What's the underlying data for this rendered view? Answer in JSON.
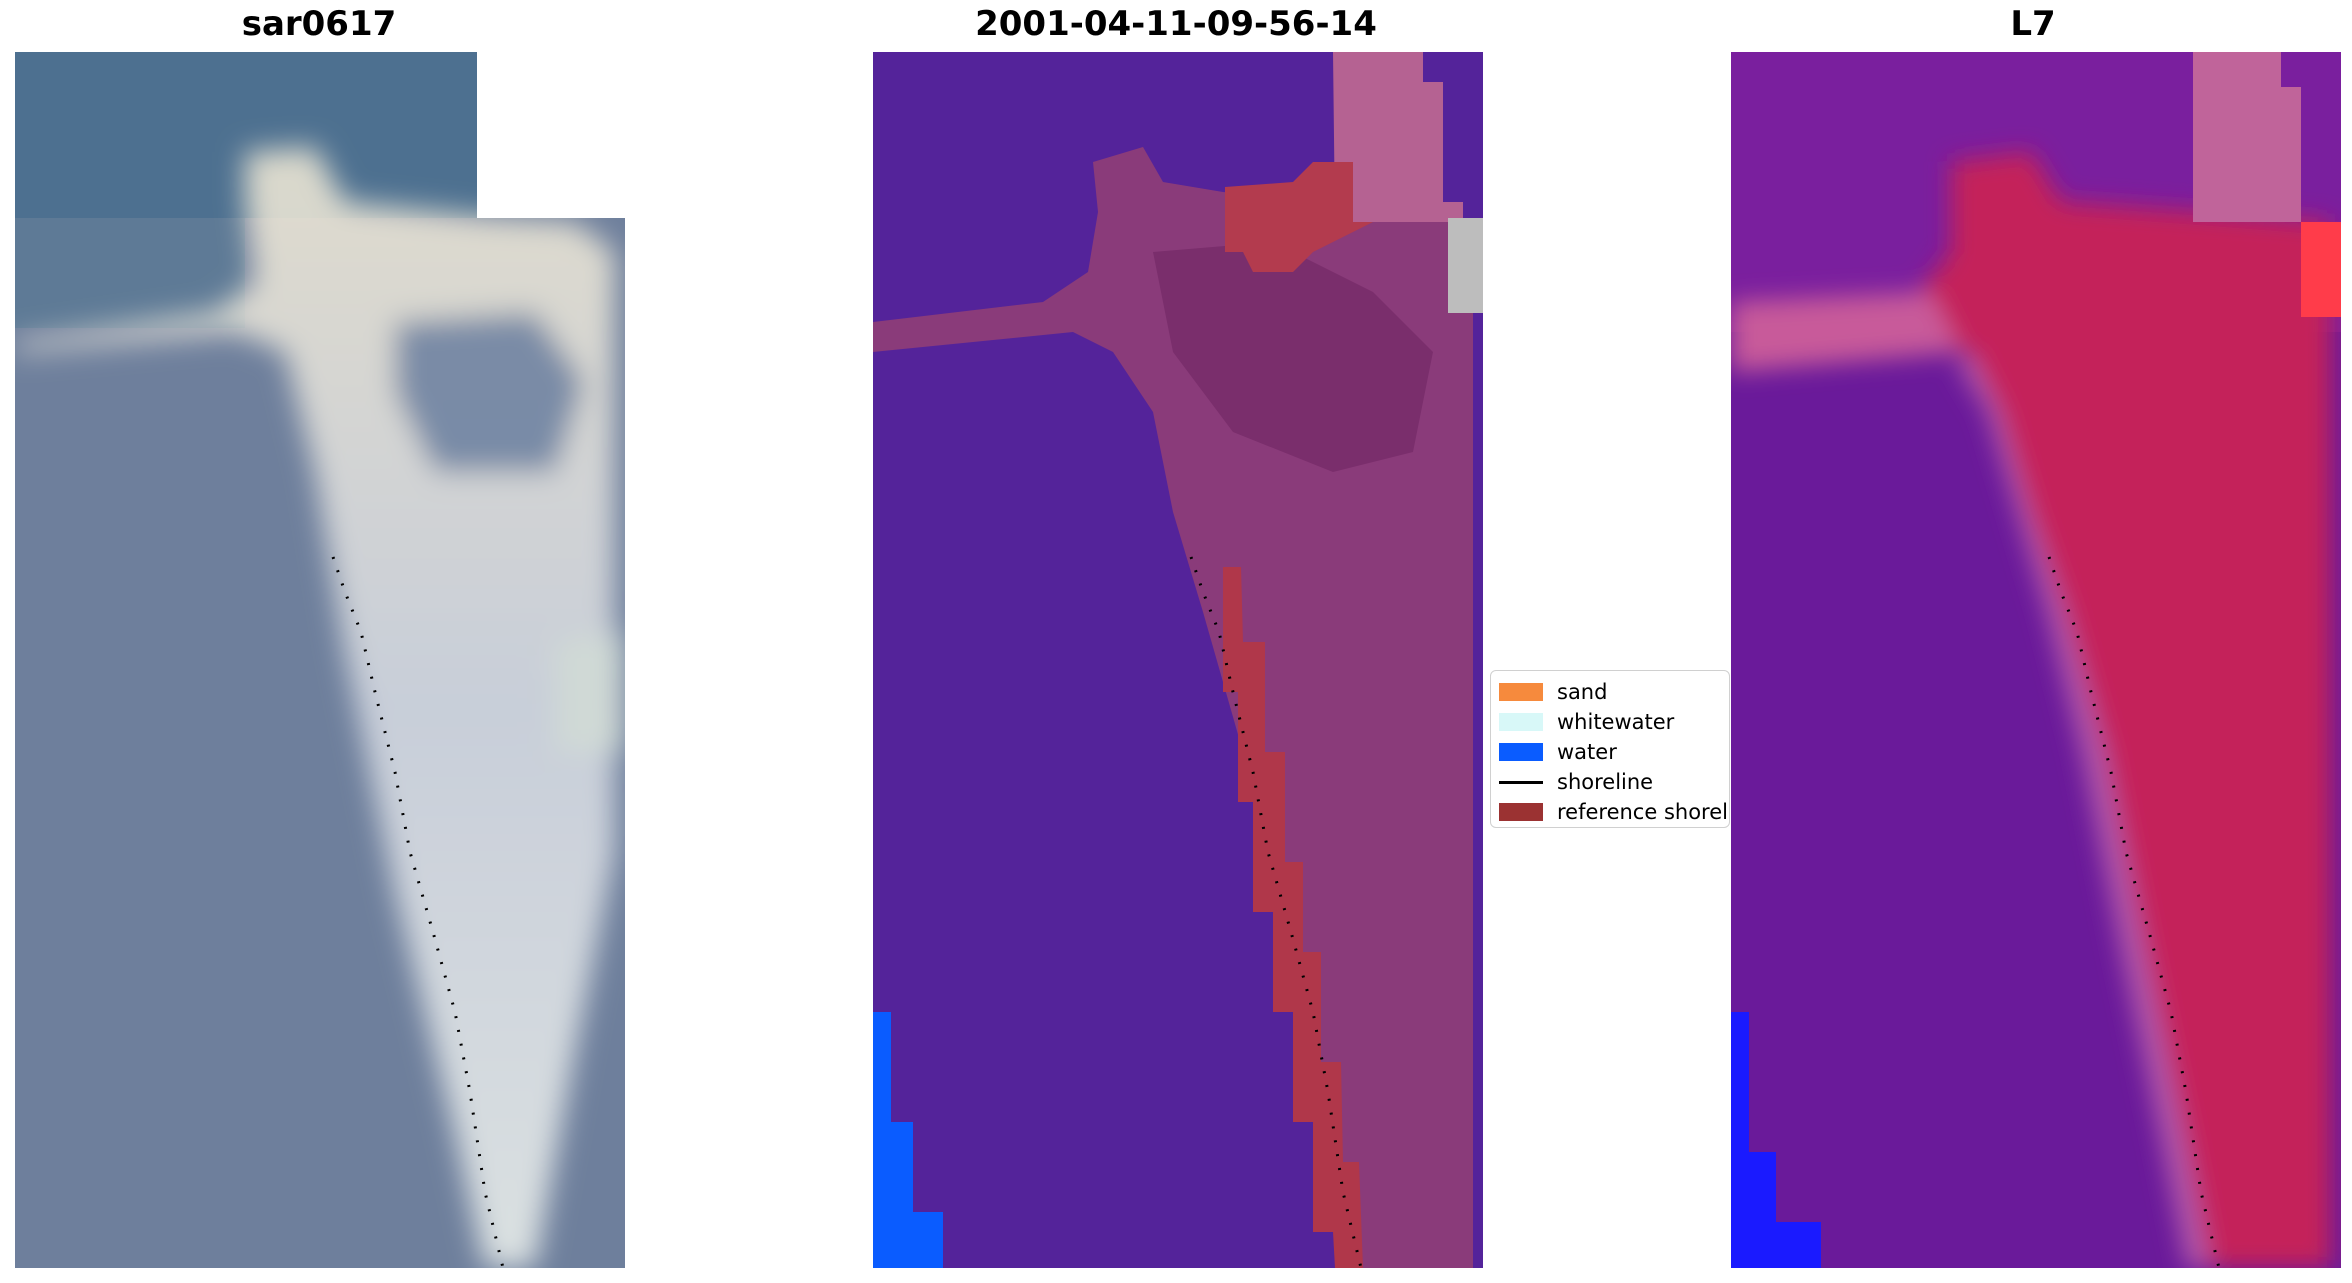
{
  "panels": [
    {
      "title": "sar0617"
    },
    {
      "title": "2001-04-11-09-56-14"
    },
    {
      "title": "L7"
    }
  ],
  "legend": {
    "items": [
      {
        "label": "sand",
        "color": "#f68a3d",
        "kind": "patch"
      },
      {
        "label": "whitewater",
        "color": "#d8f8f8",
        "kind": "patch"
      },
      {
        "label": "water",
        "color": "#0a5cff",
        "kind": "patch"
      },
      {
        "label": "shoreline",
        "color": "#000000",
        "kind": "line"
      },
      {
        "label": "reference shoreline",
        "color": "#9b3232",
        "kind": "patch"
      }
    ]
  }
}
